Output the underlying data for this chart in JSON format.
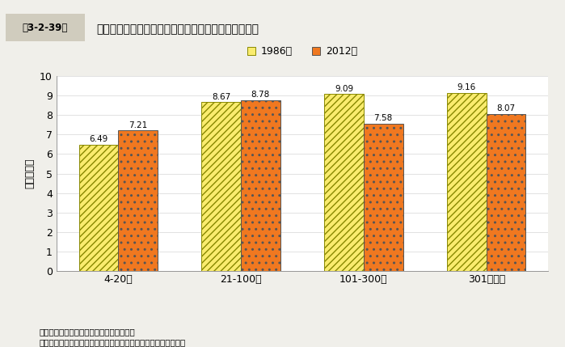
{
  "title": "東大阪市の製造業従業者数規模別の労働生産性の変化",
  "title_prefix": "第3-2-39図",
  "ylabel": "（百万円）",
  "categories": [
    "4-20人",
    "21-100人",
    "101-300人",
    "301人以上"
  ],
  "series": [
    {
      "label": "1986年",
      "values": [
        6.49,
        8.67,
        9.09,
        9.16
      ],
      "hatch": "////",
      "facecolor": "#FAEC6E",
      "edgecolor": "#888800",
      "hatch_color": "#E8C800"
    },
    {
      "label": "2012年",
      "values": [
        7.21,
        8.78,
        7.58,
        8.07
      ],
      "hatch": "..",
      "facecolor": "#F07820",
      "edgecolor": "#555555",
      "hatch_color": "#FFFFFF"
    }
  ],
  "ylim": [
    0,
    10
  ],
  "yticks": [
    0,
    1,
    2,
    3,
    4,
    5,
    6,
    7,
    8,
    9,
    10
  ],
  "bar_width": 0.32,
  "background_color": "#f0efea",
  "plot_bg_color": "#ffffff",
  "footnote1": "資料：経済産業省「工業統計表」再編加工",
  "footnote2": "（注）労働生産性は、付加価値額を従業者数を除して算出した。"
}
